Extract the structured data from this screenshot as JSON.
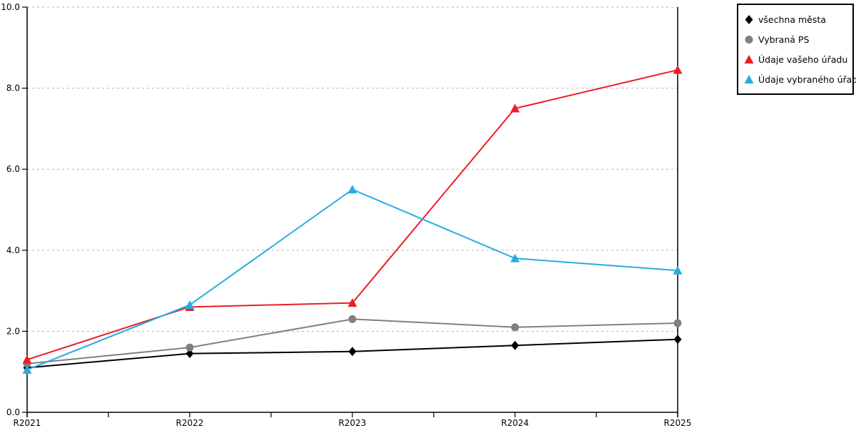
{
  "chart_data": {
    "type": "line",
    "title": "",
    "xlabel": "",
    "ylabel": "",
    "categories": [
      "R2021",
      "R2022",
      "R2023",
      "R2024",
      "R2025"
    ],
    "series": [
      {
        "name": "všechna města",
        "color": "#000000",
        "marker": "diamond",
        "values": [
          1.1,
          1.45,
          1.5,
          1.65,
          1.8
        ]
      },
      {
        "name": "Vybraná PS",
        "color": "#808080",
        "marker": "circle",
        "values": [
          1.2,
          1.6,
          2.3,
          2.1,
          2.2
        ]
      },
      {
        "name": "Údaje vašeho úřadu",
        "color": "#ed1c24",
        "marker": "triangle",
        "values": [
          1.3,
          2.6,
          2.7,
          7.5,
          8.45
        ]
      },
      {
        "name": "Údaje vybraného úřadu",
        "color": "#29abe2",
        "marker": "triangle",
        "values": [
          1.05,
          2.65,
          5.5,
          3.8,
          3.5
        ]
      }
    ],
    "ylim": [
      0,
      10
    ],
    "yticks": [
      0,
      2,
      4,
      6,
      8,
      10
    ],
    "ytick_labels": [
      "0.0",
      "2.0",
      "4.0",
      "6.0",
      "8.0",
      "10.0"
    ],
    "grid": "horizontal-dotted",
    "gridline_color": "#b3b3b3",
    "axis_color": "#000000",
    "legend_position": "top-right"
  }
}
